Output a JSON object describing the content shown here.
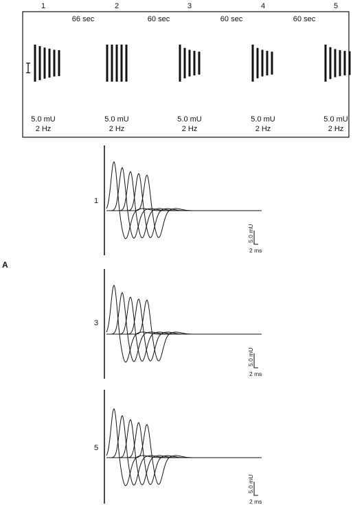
{
  "train_numbers": [
    "1",
    "2",
    "3",
    "4",
    "5"
  ],
  "intervals": [
    "66 sec",
    "60 sec",
    "60 sec",
    "60 sec"
  ],
  "stimulus": {
    "intensity": "5.0 mU",
    "frequency": "2 Hz"
  },
  "panel_label": "A",
  "trace_panels": [
    {
      "label": "1",
      "peaks": [
        1.0,
        0.88,
        0.8,
        0.76,
        0.73
      ]
    },
    {
      "label": "3",
      "peaks": [
        1.0,
        0.85,
        0.76,
        0.72,
        0.7
      ]
    },
    {
      "label": "5",
      "peaks": [
        1.0,
        0.86,
        0.78,
        0.72,
        0.68
      ]
    }
  ],
  "scale_bar": {
    "amplitude": "5.0 mU",
    "time": "2 ms"
  },
  "bar_trains": [
    [
      1.0,
      0.92,
      0.84,
      0.78,
      0.72,
      0.7
    ],
    [
      1.0,
      1.0,
      1.0,
      1.0,
      1.0
    ],
    [
      1.0,
      0.82,
      0.72,
      0.66,
      0.62
    ],
    [
      1.0,
      0.82,
      0.72,
      0.66,
      0.62
    ],
    [
      1.0,
      0.86,
      0.76,
      0.7,
      0.66,
      0.64
    ]
  ]
}
